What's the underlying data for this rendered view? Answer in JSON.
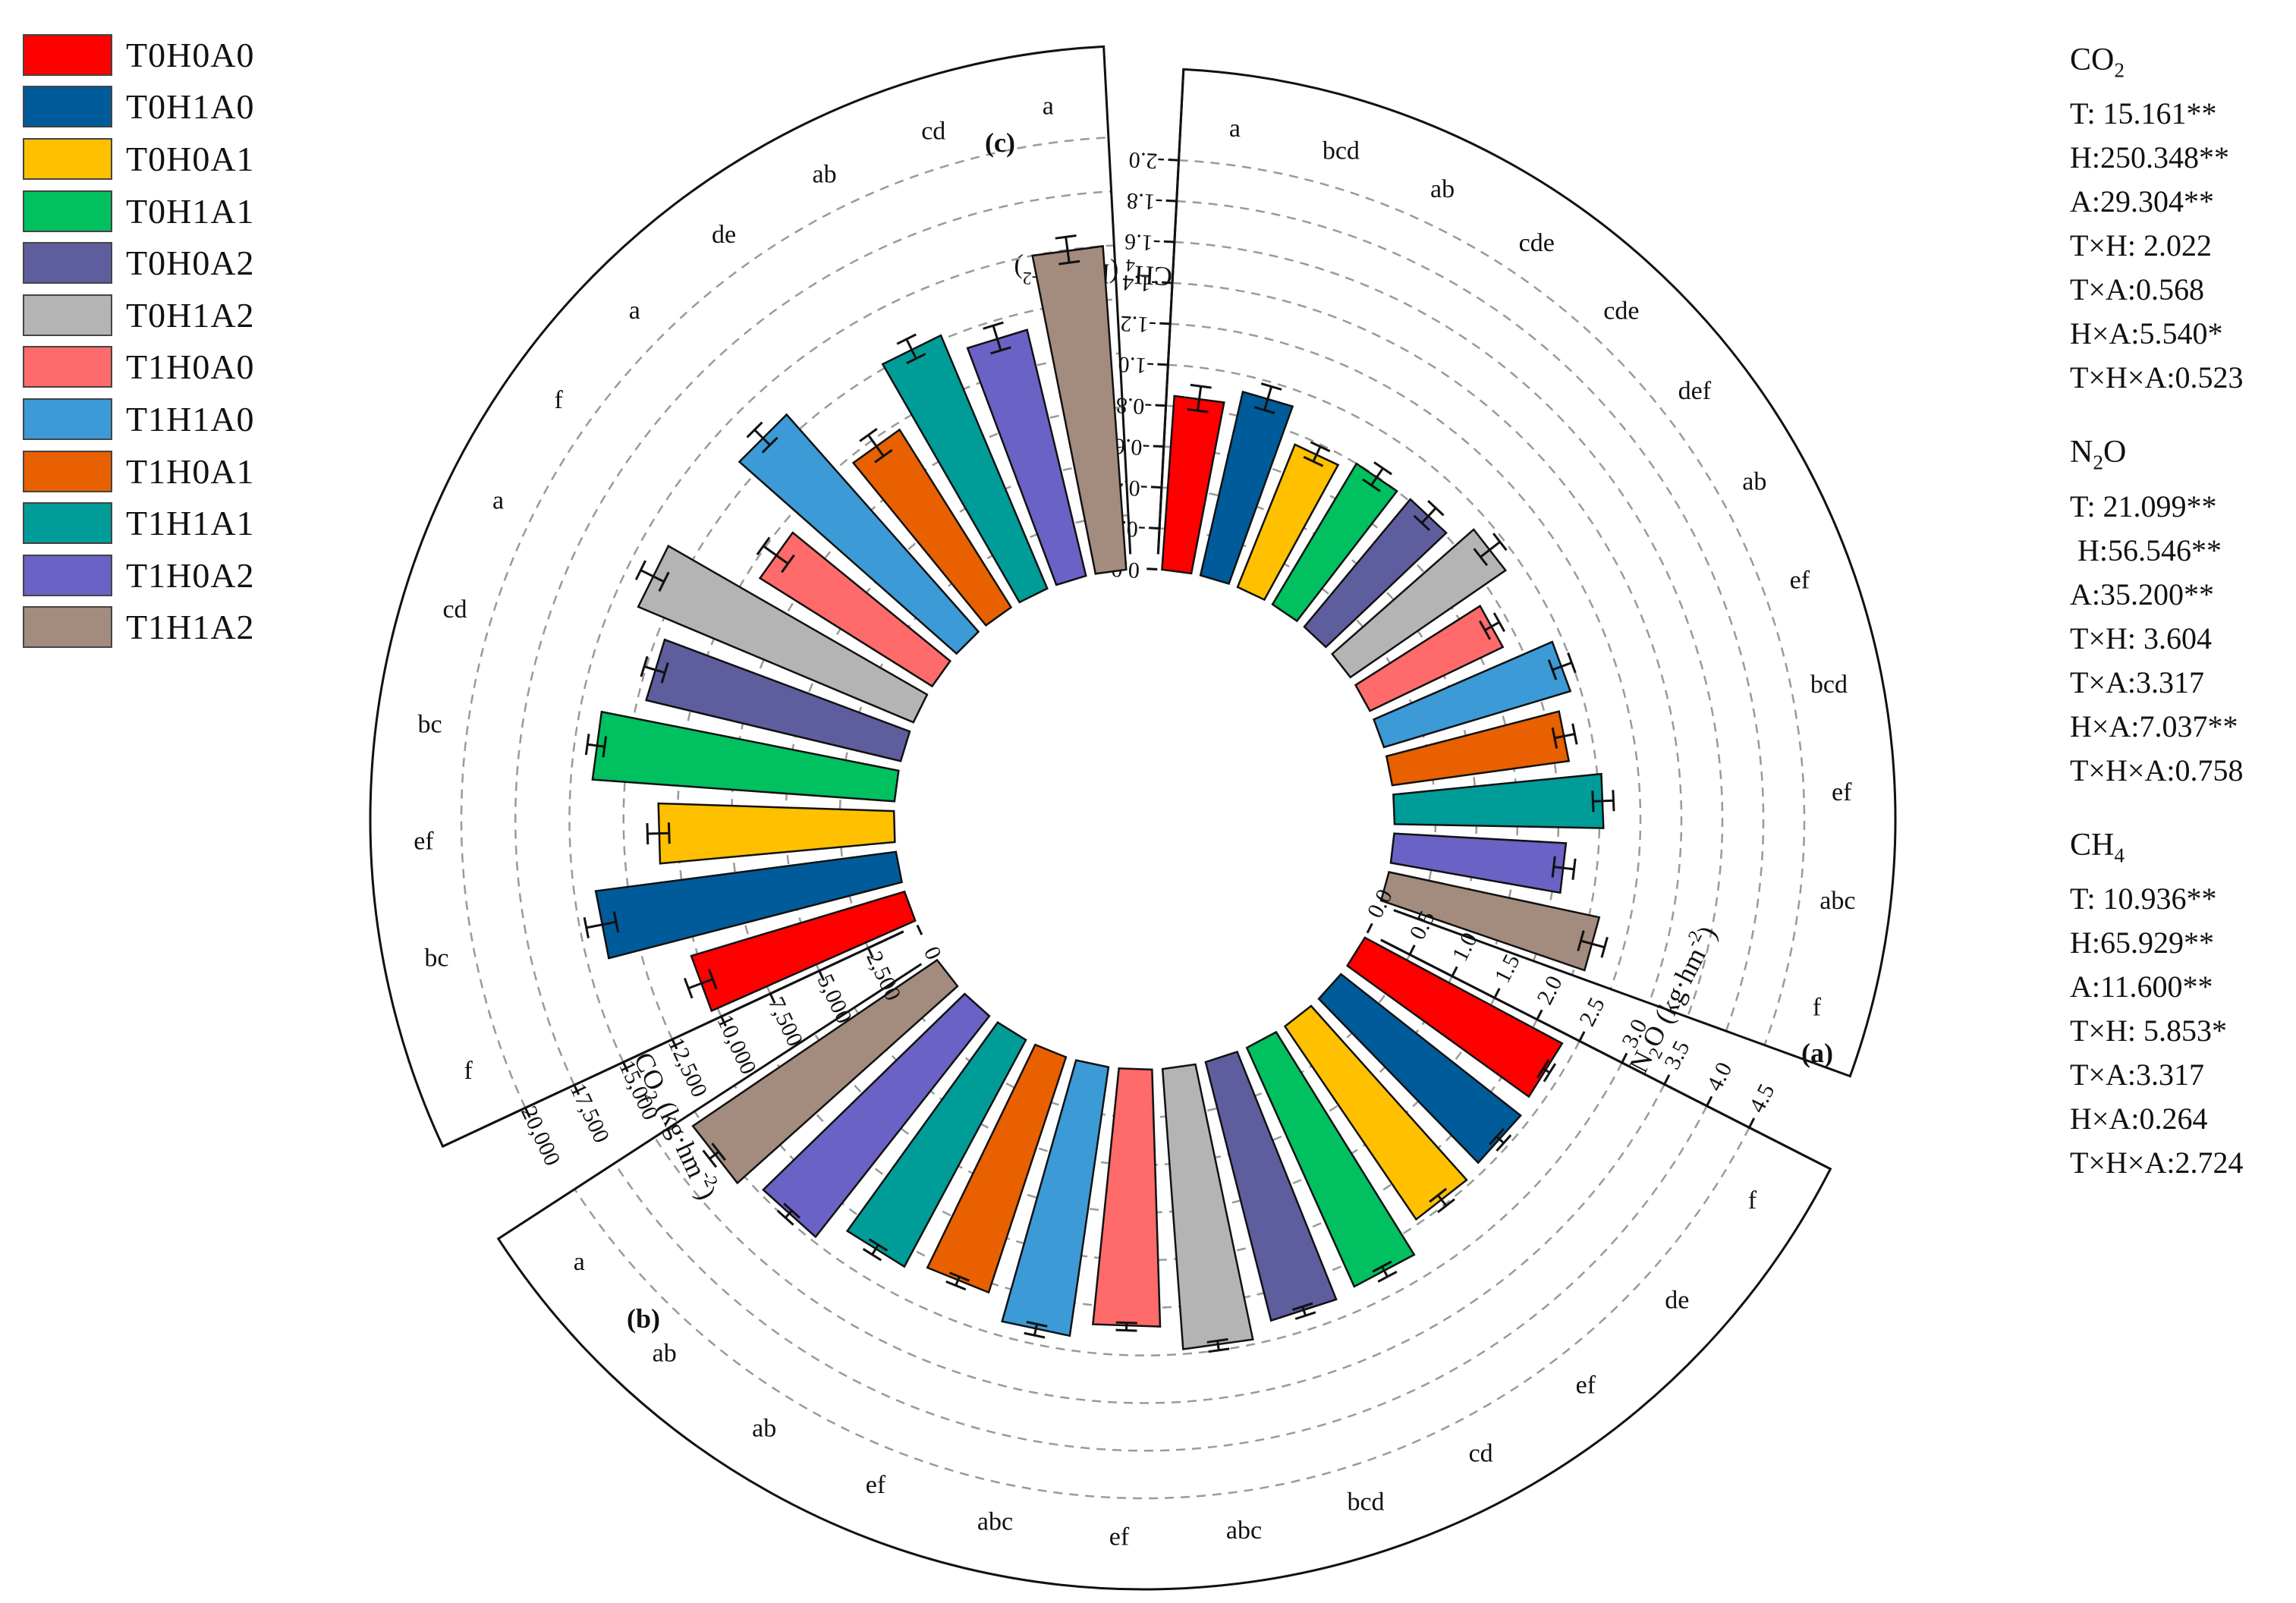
{
  "legend": [
    {
      "name": "T0H0A0",
      "color": "#FF0000"
    },
    {
      "name": "T0H1A0",
      "color": "#005B9A"
    },
    {
      "name": "T0H0A1",
      "color": "#FFC000"
    },
    {
      "name": "T0H1A1",
      "color": "#00C060"
    },
    {
      "name": "T0H0A2",
      "color": "#5E5E9E"
    },
    {
      "name": "T0H1A2",
      "color": "#B4B4B4"
    },
    {
      "name": "T1H0A0",
      "color": "#FF6A6A"
    },
    {
      "name": "T1H1A0",
      "color": "#3C9AD6"
    },
    {
      "name": "T1H0A1",
      "color": "#E86000"
    },
    {
      "name": "T1H1A1",
      "color": "#009C98"
    },
    {
      "name": "T1H0A2",
      "color": "#6A62C4"
    },
    {
      "name": "T1H1A2",
      "color": "#A38B7E"
    }
  ],
  "stats": [
    {
      "title": "CO",
      "sub": "2",
      "lines": [
        "T: 15.161**",
        "H:250.348**",
        "A:29.304**",
        "T×H: 2.022",
        "T×A:0.568",
        "H×A:5.540*",
        "T×H×A:0.523"
      ]
    },
    {
      "title": "N",
      "sub": "2",
      "title_after": "O",
      "lines": [
        "T: 21.099**",
        " H:56.546**",
        "A:35.200**",
        "T×H: 3.604",
        "T×A:3.317",
        "H×A:7.037**",
        "T×H×A:0.758"
      ]
    },
    {
      "title": "CH",
      "sub": "4",
      "lines": [
        "T: 10.936**",
        "H:65.929**",
        "A:11.600**",
        "T×H: 5.853*",
        "T×A:3.317",
        "H×A:0.264",
        "T×H×A:2.724"
      ]
    }
  ],
  "chart_data": [
    {
      "type": "bar",
      "panel": "(a)",
      "axis_label_pre": "CH",
      "axis_label_sub": "4",
      "axis_label_mid": " (kg·hm",
      "axis_label_sup": "-2",
      "axis_label_post": ")",
      "ticks": [
        "0.0",
        "-0.2",
        "-0.4",
        "-0.6",
        "-0.8",
        "-1.0",
        "-1.2",
        "-1.4",
        "-1.6",
        "-1.8",
        "-2.0"
      ],
      "ylim": [
        0,
        -2.0
      ],
      "categories": [
        "T0H0A0",
        "T0H1A0",
        "T0H0A1",
        "T0H1A1",
        "T0H0A2",
        "T0H1A2",
        "T1H0A0",
        "T1H1A0",
        "T1H0A1",
        "T1H1A1",
        "T1H0A2",
        "T1H1A2"
      ],
      "values": [
        -0.85,
        -0.92,
        -0.75,
        -0.8,
        -0.81,
        -0.92,
        -0.72,
        -0.95,
        -0.87,
        -1.02,
        -0.84,
        -1.05
      ],
      "errors": [
        0.06,
        0.06,
        0.04,
        0.05,
        0.05,
        0.06,
        0.04,
        0.05,
        0.05,
        0.05,
        0.05,
        0.06
      ],
      "letters": [
        "a",
        "bcd",
        "ab",
        "cde",
        "cde",
        "def",
        "ab",
        "ef",
        "bcd",
        "ef",
        "abc",
        "f"
      ]
    },
    {
      "type": "bar",
      "panel": "(b)",
      "axis_label_pre": "N",
      "axis_label_sub": "2",
      "axis_label_mid": "O (kg·hm",
      "axis_label_sup": "-2",
      "axis_label_post": ")",
      "ticks": [
        "0.0",
        "0.5",
        "1.0",
        "1.5",
        "2.0",
        "2.5",
        "3.0",
        "3.5",
        "4.0",
        "4.5"
      ],
      "ylim": [
        0,
        4.5
      ],
      "categories": [
        "T0H0A0",
        "T0H1A0",
        "T0H0A1",
        "T0H1A1",
        "T0H0A2",
        "T0H1A2",
        "T1H0A0",
        "T1H1A0",
        "T1H0A1",
        "T1H1A1",
        "T1H0A2",
        "T1H1A2"
      ],
      "values": [
        2.35,
        2.4,
        2.45,
        2.75,
        2.8,
        2.95,
        2.7,
        2.85,
        2.6,
        2.7,
        2.95,
        3.1
      ],
      "errors": [
        0.04,
        0.05,
        0.07,
        0.06,
        0.05,
        0.05,
        0.04,
        0.06,
        0.05,
        0.06,
        0.05,
        0.06
      ],
      "letters": [
        "f",
        "de",
        "ef",
        "cd",
        "bcd",
        "abc",
        "ef",
        "abc",
        "ef",
        "ab",
        "ab",
        "a"
      ]
    },
    {
      "type": "bar",
      "panel": "(c)",
      "axis_label_pre": "CO",
      "axis_label_sub": "2",
      "axis_label_mid": " (kg·hm",
      "axis_label_sup": "-2",
      "axis_label_post": ")",
      "ticks": [
        "0",
        "2,500",
        "5,000",
        "7,500",
        "10,000",
        "12,500",
        "15,000",
        "17,500",
        "20,000"
      ],
      "ylim": [
        0,
        20000
      ],
      "categories": [
        "T0H0A0",
        "T0H1A0",
        "T0H0A1",
        "T0H1A1",
        "T0H0A2",
        "T0H1A2",
        "T1H0A0",
        "T1H1A0",
        "T1H0A1",
        "T1H1A1",
        "T1H0A2",
        "T1H1A2"
      ],
      "values": [
        10300,
        14000,
        10900,
        14000,
        12100,
        13800,
        9400,
        13400,
        9700,
        12700,
        11700,
        15000
      ],
      "errors": [
        600,
        700,
        500,
        400,
        500,
        600,
        700,
        500,
        600,
        500,
        600,
        600
      ],
      "letters": [
        "f",
        "bc",
        "ef",
        "bc",
        "cd",
        "a",
        "f",
        "a",
        "de",
        "ab",
        "cd",
        "a"
      ]
    }
  ]
}
